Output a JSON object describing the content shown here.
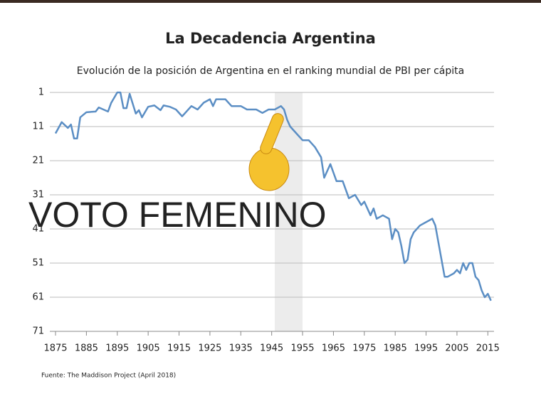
{
  "chart_data": {
    "type": "line",
    "title": "La Decadencia Argentina",
    "subtitle": "Evolución de la posición de Argentina en el ranking mundial de PBI per cápita",
    "annotation": "VOTO FEMENINO",
    "source": "Fuente: The Maddison Project (April 2018)",
    "xlim": [
      1875,
      2017
    ],
    "xticks": [
      1875,
      1885,
      1895,
      1905,
      1915,
      1925,
      1935,
      1945,
      1955,
      1965,
      1975,
      1985,
      1995,
      2005,
      2015
    ],
    "ylim": [
      1,
      71
    ],
    "y_inverted": true,
    "yticks": [
      1,
      11,
      21,
      31,
      41,
      51,
      61,
      71
    ],
    "grid": true,
    "highlight": [
      1946,
      1955
    ],
    "series": [
      {
        "color": "#5b8ec4",
        "x": [
          1875,
          1877,
          1879,
          1880,
          1881,
          1882,
          1883,
          1885,
          1888,
          1889,
          1892,
          1893,
          1895,
          1896,
          1897,
          1898,
          1899,
          1901,
          1902,
          1903,
          1905,
          1907,
          1909,
          1910,
          1912,
          1914,
          1916,
          1917,
          1919,
          1921,
          1923,
          1925,
          1926,
          1927,
          1930,
          1932,
          1935,
          1937,
          1940,
          1942,
          1944,
          1946,
          1948,
          1949,
          1950,
          1951,
          1953,
          1955,
          1957,
          1959,
          1961,
          1962,
          1963,
          1964,
          1966,
          1968,
          1970,
          1972,
          1974,
          1975,
          1977,
          1978,
          1979,
          1981,
          1983,
          1984,
          1985,
          1986,
          1987,
          1988,
          1989,
          1990,
          1991,
          1993,
          1995,
          1997,
          1998,
          1999,
          2001,
          2002,
          2004,
          2005,
          2006,
          2007,
          2008,
          2009,
          2010,
          2011,
          2012,
          2013,
          2014,
          2015,
          2016
        ],
        "values": [
          13,
          9.7,
          11.4,
          10.4,
          14.5,
          14.5,
          8.3,
          6.8,
          6.6,
          5.4,
          6.6,
          4.1,
          1,
          1,
          5.6,
          5.6,
          1.4,
          7.2,
          6.2,
          8.3,
          5.2,
          4.8,
          6.2,
          4.8,
          5.2,
          6,
          8,
          7,
          5,
          6,
          4,
          3,
          5,
          3,
          3,
          5,
          5,
          6,
          6,
          7,
          6,
          6,
          5,
          6,
          9,
          11,
          13,
          15,
          15,
          17,
          20,
          26,
          24,
          22,
          27,
          27,
          32,
          31,
          34,
          33,
          37,
          35,
          38,
          37,
          38,
          44,
          41,
          42,
          46,
          51,
          50,
          44,
          42,
          40,
          39,
          38,
          40,
          45,
          55,
          55,
          54,
          53,
          54,
          51,
          53,
          51,
          51,
          55,
          56,
          59,
          61,
          60,
          62
        ]
      }
    ]
  }
}
